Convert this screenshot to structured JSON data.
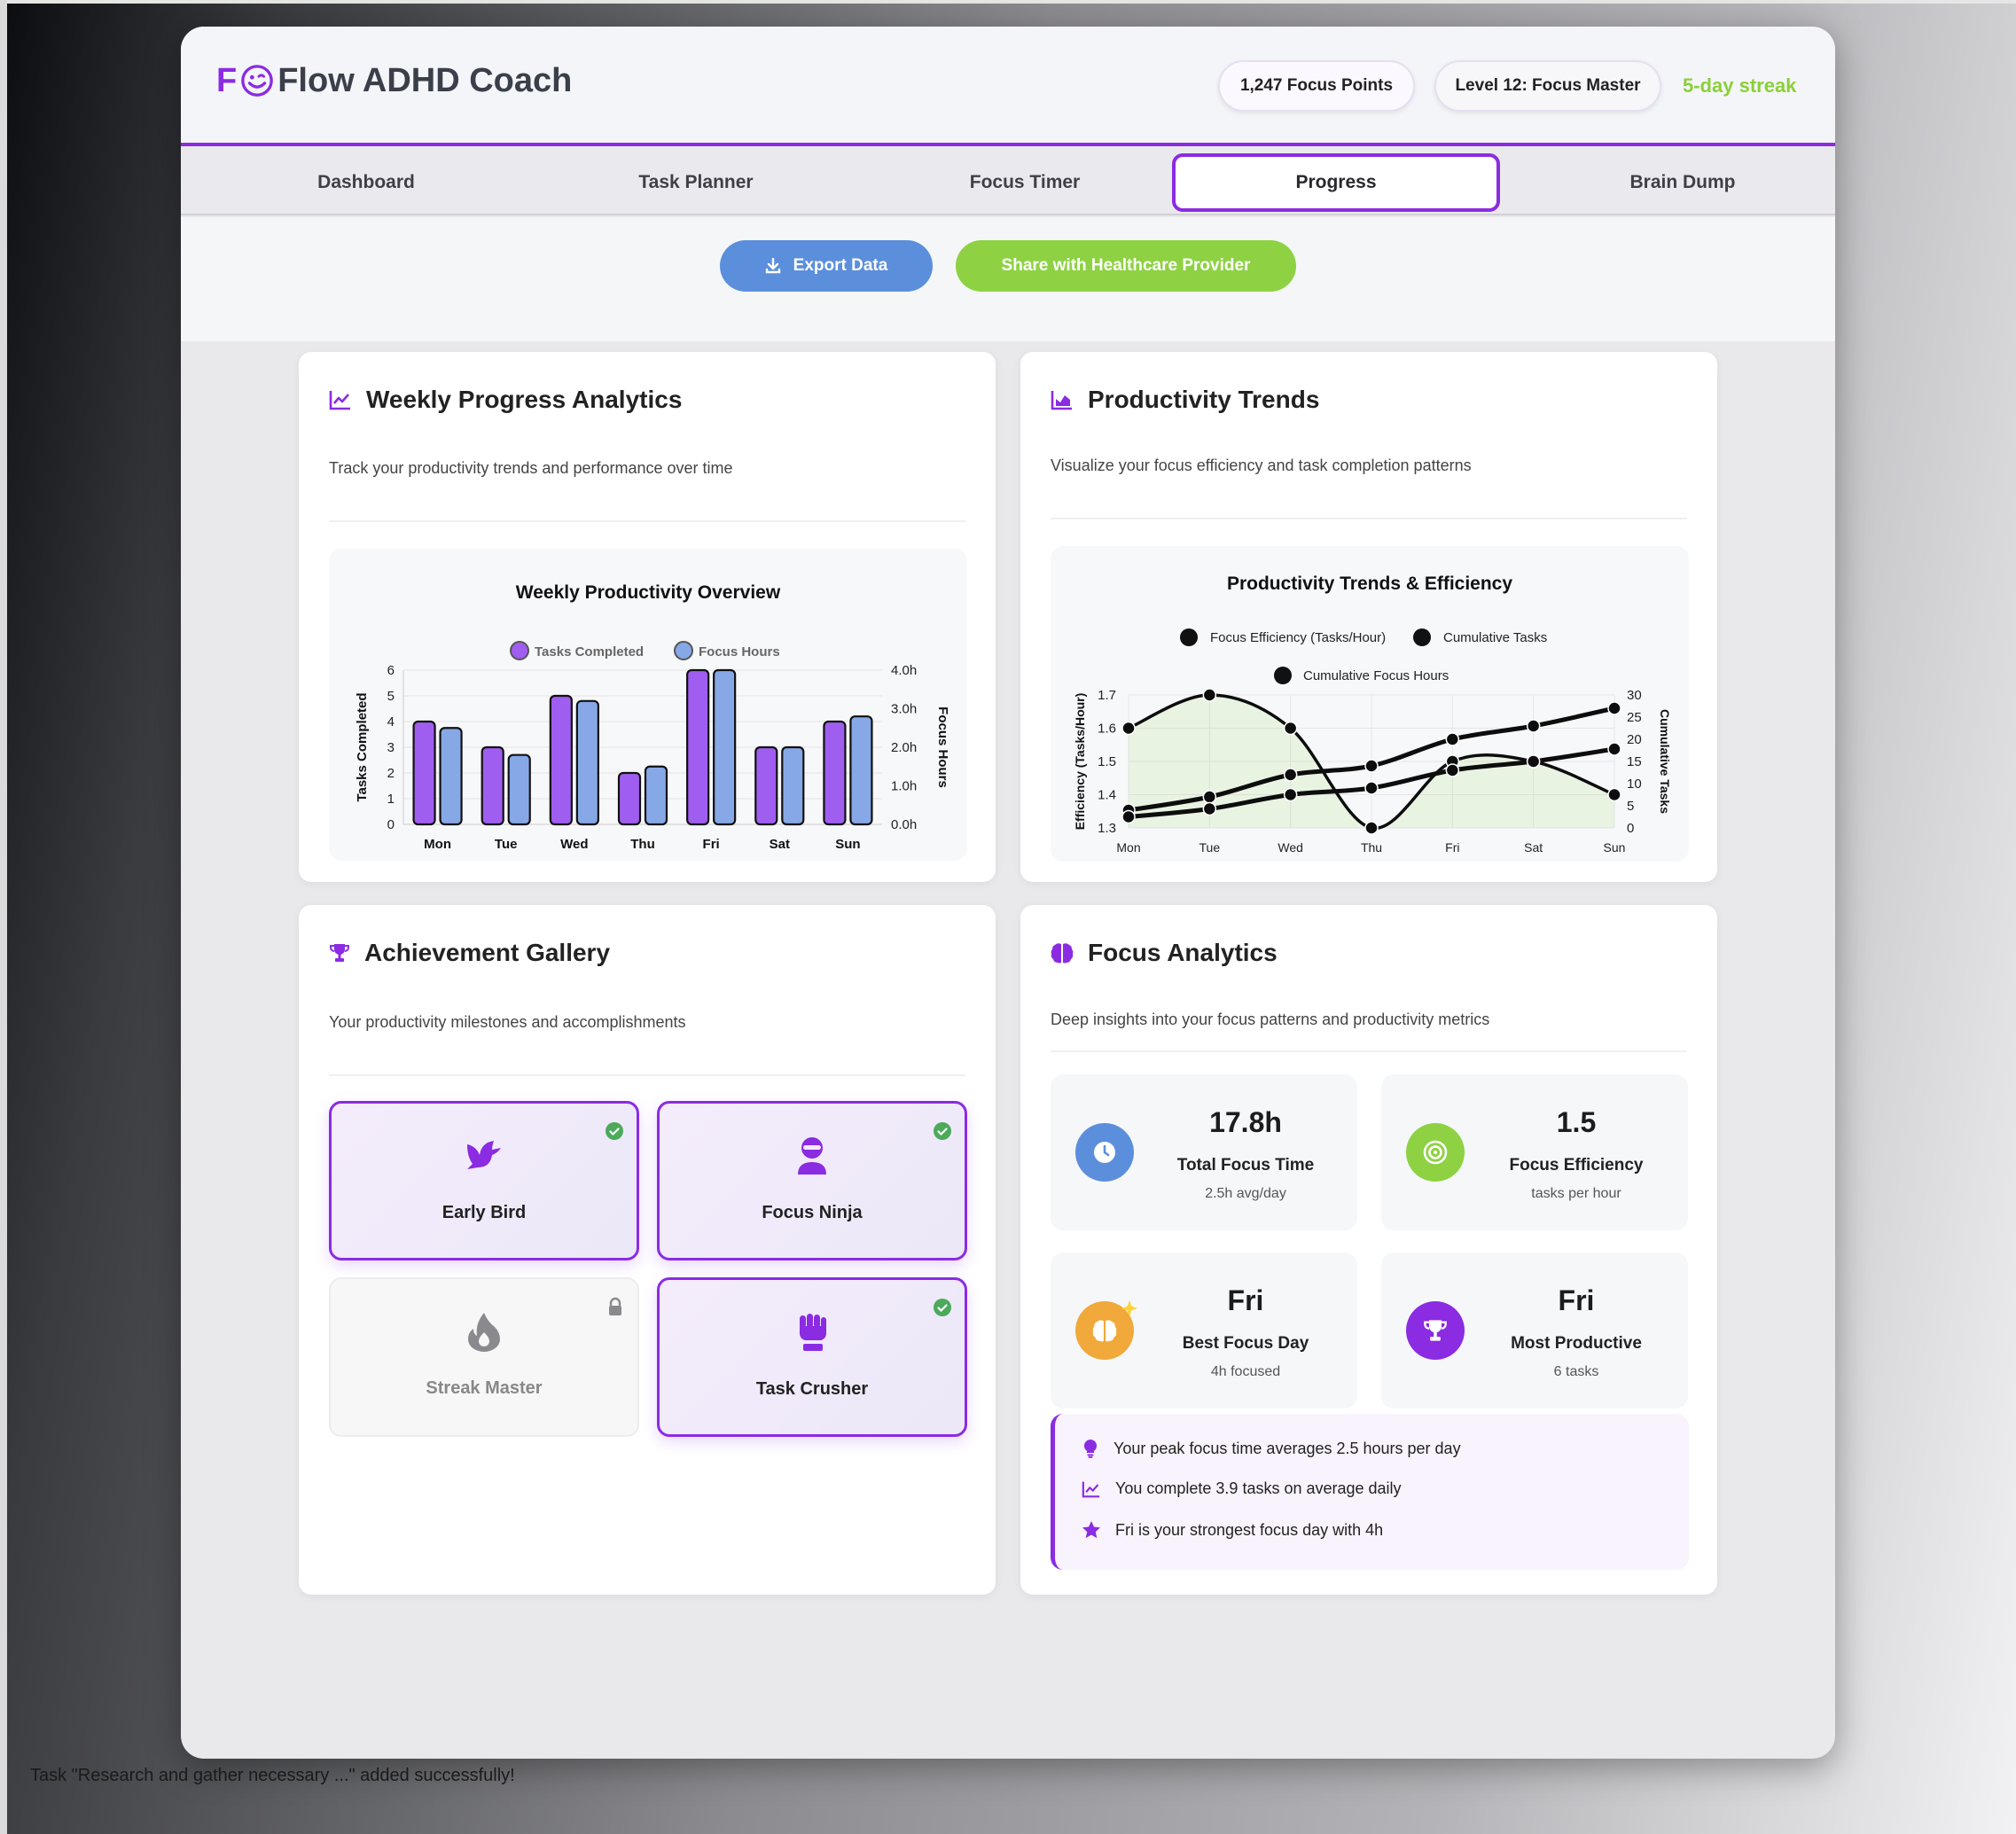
{
  "app": {
    "logo_letter": "F",
    "title": "Flow ADHD Coach",
    "points": "1,247 Focus Points",
    "level": "Level 12: Focus Master",
    "streak": "5-day streak"
  },
  "tabs": [
    {
      "label": "Dashboard"
    },
    {
      "label": "Task Planner"
    },
    {
      "label": "Focus Timer"
    },
    {
      "label": "Progress",
      "active": true
    },
    {
      "label": "Brain Dump"
    }
  ],
  "actions": {
    "export": "Export Data",
    "share": "Share with Healthcare Provider"
  },
  "weekly": {
    "title": "Weekly Progress Analytics",
    "subtitle": "Track your productivity trends and performance over time"
  },
  "trends": {
    "title": "Productivity Trends",
    "subtitle": "Visualize your focus efficiency and task completion patterns"
  },
  "achievements": {
    "title": "Achievement Gallery",
    "subtitle": "Your productivity milestones and accomplishments",
    "items": [
      {
        "name": "Early Bird",
        "icon": "dove-icon",
        "unlocked": true
      },
      {
        "name": "Focus Ninja",
        "icon": "ninja-icon",
        "unlocked": true
      },
      {
        "name": "Streak Master",
        "icon": "fire-icon",
        "unlocked": false
      },
      {
        "name": "Task Crusher",
        "icon": "fist-icon",
        "unlocked": true
      }
    ]
  },
  "focus": {
    "title": "Focus Analytics",
    "subtitle": "Deep insights into your focus patterns and productivity metrics",
    "stats": [
      {
        "value": "17.8h",
        "label": "Total Focus Time",
        "sub": "2.5h avg/day",
        "icon": "clock-icon",
        "color": "#5b8fdc"
      },
      {
        "value": "1.5",
        "label": "Focus Efficiency",
        "sub": "tasks per hour",
        "icon": "target-icon",
        "color": "#8ed244"
      },
      {
        "value": "Fri",
        "label": "Best Focus Day",
        "sub": "4h focused",
        "icon": "brain-icon",
        "color": "#f0a93a"
      },
      {
        "value": "Fri",
        "label": "Most Productive",
        "sub": "6 tasks",
        "icon": "trophy-icon",
        "color": "#8b2be2"
      }
    ],
    "insights": [
      {
        "text": "Your peak focus time averages 2.5 hours per day",
        "icon": "lightbulb-icon"
      },
      {
        "text": "You complete 3.9 tasks on average daily",
        "icon": "chart-line-icon"
      },
      {
        "text": "Fri is your strongest focus day with 4h",
        "icon": "star-icon"
      }
    ]
  },
  "toast": "Task \"Research and gather necessary ...\" added successfully!",
  "chart_data": [
    {
      "type": "bar",
      "title": "Weekly Productivity Overview",
      "categories": [
        "Mon",
        "Tue",
        "Wed",
        "Thu",
        "Fri",
        "Sat",
        "Sun"
      ],
      "series": [
        {
          "name": "Tasks Completed",
          "axis": "left",
          "color": "#a05ef0",
          "values": [
            4,
            3,
            5,
            2,
            6,
            3,
            4
          ]
        },
        {
          "name": "Focus Hours",
          "axis": "right",
          "color": "#86a8e6",
          "values": [
            2.5,
            1.8,
            3.2,
            1.5,
            4.0,
            2.0,
            2.8
          ]
        }
      ],
      "ylabel": "Tasks Completed",
      "y2label": "Focus Hours",
      "ylim": [
        0,
        6
      ],
      "y2lim": [
        0,
        4
      ],
      "yticks": [
        "0",
        "1",
        "2",
        "3",
        "4",
        "5",
        "6"
      ],
      "y2ticks": [
        "0.0h",
        "1.0h",
        "2.0h",
        "3.0h",
        "4.0h"
      ],
      "legend": "top"
    },
    {
      "type": "line",
      "title": "Productivity Trends & Efficiency",
      "categories": [
        "Mon",
        "Tue",
        "Wed",
        "Thu",
        "Fri",
        "Sat",
        "Sun"
      ],
      "series": [
        {
          "name": "Focus Efficiency (Tasks/Hour)",
          "axis": "left",
          "values": [
            1.6,
            1.7,
            1.6,
            1.3,
            1.5,
            1.5,
            1.4
          ],
          "fill": true
        },
        {
          "name": "Cumulative Tasks",
          "axis": "right",
          "values": [
            4,
            7,
            12,
            14,
            20,
            23,
            27
          ]
        },
        {
          "name": "Cumulative Focus Hours",
          "axis": "right",
          "values": [
            2.5,
            4.3,
            7.5,
            9.0,
            13.0,
            15.0,
            17.8
          ]
        }
      ],
      "ylabel": "Efficiency (Tasks/Hour)",
      "y2label": "Cumulative Tasks",
      "ylim": [
        1.3,
        1.7
      ],
      "y2lim": [
        0,
        30
      ],
      "yticks": [
        "1.3",
        "1.4",
        "1.5",
        "1.6",
        "1.7"
      ],
      "y2ticks": [
        "0",
        "5",
        "10",
        "15",
        "20",
        "25",
        "30"
      ],
      "legend": "top"
    }
  ]
}
